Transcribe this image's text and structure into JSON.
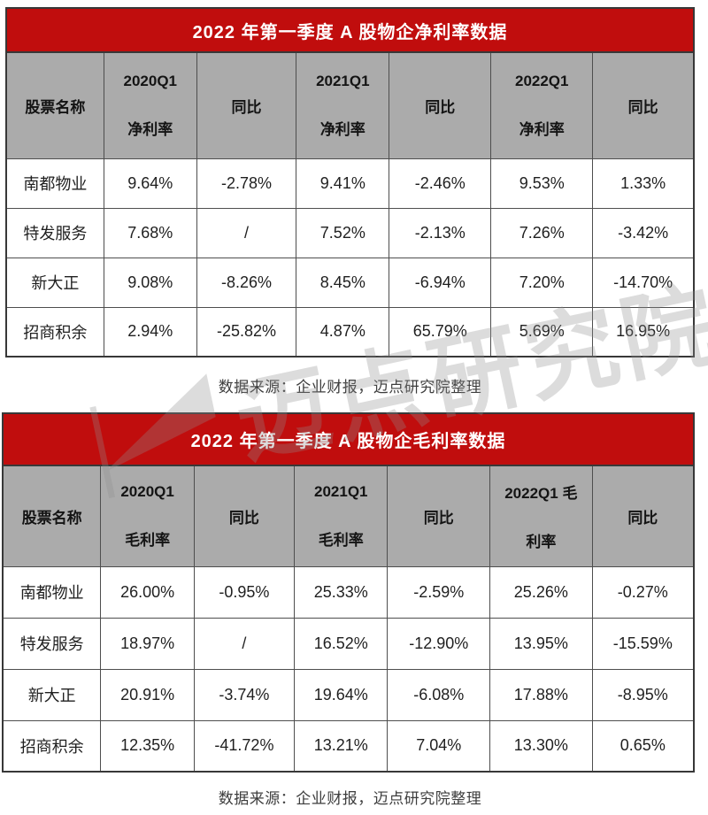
{
  "watermark": {
    "text": "迈点研究院"
  },
  "colors": {
    "title_bg": "#c00d0d",
    "header_bg": "#ababab",
    "grid_border": "#4e4e4e",
    "outer_border": "#383838",
    "title_text": "#ffffff"
  },
  "chart_data": [
    {
      "type": "table",
      "title": "2022 年第一季度 A 股物企净利率数据",
      "headers": [
        [
          "股票名称"
        ],
        [
          "2020Q1",
          "净利率"
        ],
        [
          "同比"
        ],
        [
          "2021Q1",
          "净利率"
        ],
        [
          "同比"
        ],
        [
          "2022Q1",
          "净利率"
        ],
        [
          "同比"
        ]
      ],
      "rows": [
        [
          "南都物业",
          "9.64%",
          "-2.78%",
          "9.41%",
          "-2.46%",
          "9.53%",
          "1.33%"
        ],
        [
          "特发服务",
          "7.68%",
          "/",
          "7.52%",
          "-2.13%",
          "7.26%",
          "-3.42%"
        ],
        [
          "新大正",
          "9.08%",
          "-8.26%",
          "8.45%",
          "-6.94%",
          "7.20%",
          "-14.70%"
        ],
        [
          "招商积余",
          "2.94%",
          "-25.82%",
          "4.87%",
          "65.79%",
          "5.69%",
          "16.95%"
        ]
      ],
      "source": "数据来源：企业财报，迈点研究院整理"
    },
    {
      "type": "table",
      "title": "2022 年第一季度 A 股物企毛利率数据",
      "headers": [
        [
          "股票名称"
        ],
        [
          "2020Q1",
          "毛利率"
        ],
        [
          "同比"
        ],
        [
          "2021Q1",
          "毛利率"
        ],
        [
          "同比"
        ],
        [
          "2022Q1 毛",
          "利率"
        ],
        [
          "同比"
        ]
      ],
      "rows": [
        [
          "南都物业",
          "26.00%",
          "-0.95%",
          "25.33%",
          "-2.59%",
          "25.26%",
          "-0.27%"
        ],
        [
          "特发服务",
          "18.97%",
          "/",
          "16.52%",
          "-12.90%",
          "13.95%",
          "-15.59%"
        ],
        [
          "新大正",
          "20.91%",
          "-3.74%",
          "19.64%",
          "-6.08%",
          "17.88%",
          "-8.95%"
        ],
        [
          "招商积余",
          "12.35%",
          "-41.72%",
          "13.21%",
          "7.04%",
          "13.30%",
          "0.65%"
        ]
      ],
      "source": "数据来源：企业财报，迈点研究院整理"
    }
  ]
}
